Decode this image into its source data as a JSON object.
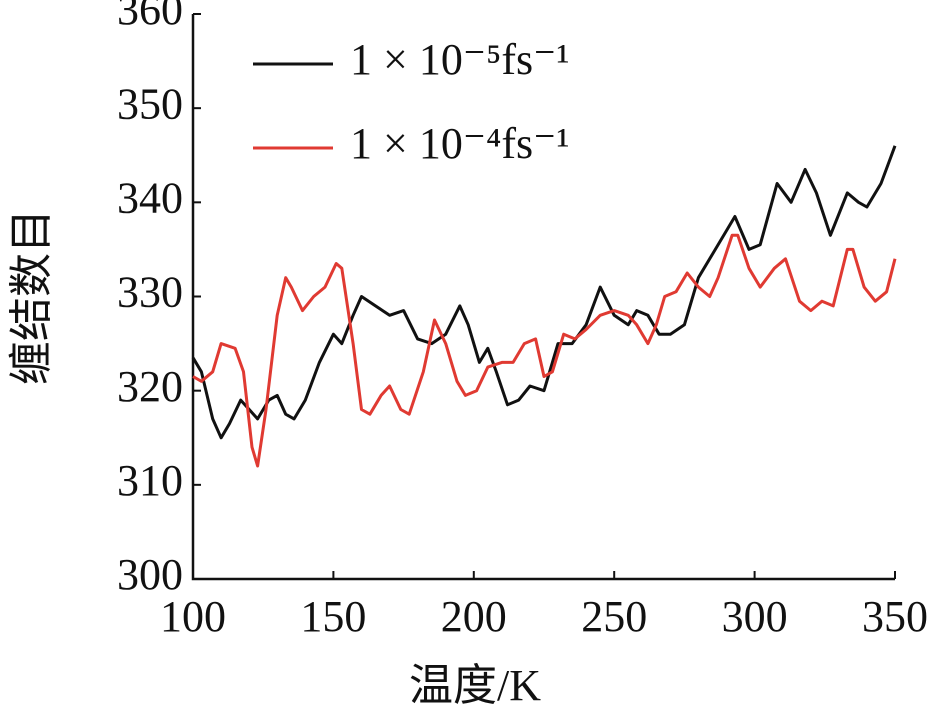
{
  "chart_data": {
    "type": "line",
    "xlabel": "温度/K",
    "ylabel": "缠结数目",
    "xlim": [
      100,
      350
    ],
    "xticks": [
      100,
      150,
      200,
      250,
      300,
      350
    ],
    "ylim": [
      300,
      360
    ],
    "yticks": [
      300,
      310,
      320,
      330,
      340,
      350,
      360
    ],
    "legend": "upper left",
    "series": [
      {
        "name": "1 × 10⁻⁵fs⁻¹",
        "color": "#111111",
        "x": [
          100,
          103,
          107,
          110,
          113,
          117,
          120,
          123,
          127,
          130,
          133,
          136,
          140,
          145,
          150,
          153,
          157,
          160,
          165,
          170,
          175,
          180,
          185,
          190,
          195,
          198,
          202,
          205,
          208,
          212,
          216,
          220,
          225,
          230,
          235,
          240,
          245,
          250,
          255,
          258,
          262,
          266,
          270,
          275,
          280,
          285,
          290,
          293,
          298,
          302,
          308,
          313,
          318,
          322,
          327,
          333,
          337,
          340,
          345,
          350
        ],
        "values": [
          323.5,
          322,
          317,
          315,
          316.5,
          319,
          318,
          317,
          319,
          319.5,
          317.5,
          317,
          319,
          323,
          326,
          325,
          328,
          330,
          329,
          328,
          328.5,
          325.5,
          325,
          326,
          329,
          327,
          323,
          324.5,
          322,
          318.5,
          319,
          320.5,
          320,
          325,
          325,
          327,
          331,
          328,
          327,
          328.5,
          328,
          326,
          326,
          327,
          332,
          334.5,
          337,
          338.5,
          335,
          335.5,
          342,
          340,
          343.5,
          341,
          336.5,
          341,
          340,
          339.5,
          342,
          346
        ]
      },
      {
        "name": "1 × 10⁻⁴fs⁻¹",
        "color": "#e03a32",
        "x": [
          100,
          103,
          107,
          110,
          115,
          118,
          121,
          123,
          126,
          130,
          133,
          135,
          139,
          143,
          147,
          151,
          153,
          157,
          160,
          163,
          167,
          170,
          174,
          177,
          182,
          186,
          190,
          194,
          197,
          201,
          205,
          210,
          214,
          218,
          222,
          225,
          228,
          232,
          236,
          240,
          245,
          250,
          255,
          258,
          262,
          265,
          268,
          272,
          276,
          280,
          284,
          287,
          292,
          294,
          298,
          302,
          307,
          311,
          316,
          320,
          324,
          328,
          333,
          335,
          339,
          343,
          347,
          350
        ],
        "values": [
          321.5,
          321,
          322,
          325,
          324.5,
          322,
          314,
          312,
          318,
          328,
          332,
          331,
          328.5,
          330,
          331,
          333.5,
          333,
          325,
          318,
          317.5,
          319.5,
          320.5,
          318,
          317.5,
          322,
          327.5,
          325,
          321,
          319.5,
          320,
          322.5,
          323,
          323,
          325,
          325.5,
          321.5,
          322,
          326,
          325.5,
          326.5,
          328,
          328.5,
          328,
          327,
          325,
          327,
          330,
          330.5,
          332.5,
          331,
          330,
          332,
          336.5,
          336.5,
          333,
          331,
          333,
          334,
          329.5,
          328.5,
          329.5,
          329,
          335,
          335,
          331,
          329.5,
          330.5,
          334
        ]
      }
    ]
  }
}
